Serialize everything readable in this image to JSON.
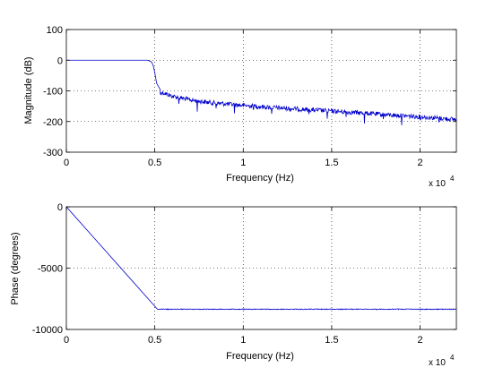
{
  "chart_data": [
    {
      "type": "line",
      "title": "",
      "xlabel": "Frequency (Hz)",
      "ylabel": "Magnitude (dB)",
      "x_multiplier_label": "x 10",
      "x_multiplier_exponent": "4",
      "xlim": [
        0,
        22050
      ],
      "ylim": [
        -300,
        100
      ],
      "grid": true,
      "xticks": [
        0,
        5000,
        10000,
        15000,
        20000
      ],
      "xtick_labels": [
        "0",
        "0.5",
        "1",
        "1.5",
        "2"
      ],
      "yticks": [
        100,
        0,
        -100,
        -200,
        -300
      ],
      "ytick_labels": [
        "100",
        "0",
        "-100",
        "-200",
        "-300"
      ],
      "series": [
        {
          "color": "#0000cc",
          "x": [
            0,
            4600,
            4800,
            4900,
            5000,
            5100,
            5300,
            6000,
            7000,
            8000,
            10000,
            12000,
            14000,
            16000,
            18000,
            20000,
            22050
          ],
          "y": [
            0,
            0,
            -5,
            -15,
            -40,
            -75,
            -95,
            -110,
            -122,
            -130,
            -140,
            -148,
            -155,
            -162,
            -170,
            -177,
            -186
          ],
          "ripple_start": 5300,
          "ripple_depth": 15,
          "notch_depth": 35
        }
      ]
    },
    {
      "type": "line",
      "title": "",
      "xlabel": "Frequency (Hz)",
      "ylabel": "Phase (degrees)",
      "x_multiplier_label": "x 10",
      "x_multiplier_exponent": "4",
      "xlim": [
        0,
        22050
      ],
      "ylim": [
        -10000,
        0
      ],
      "grid": true,
      "xticks": [
        0,
        5000,
        10000,
        15000,
        20000
      ],
      "xtick_labels": [
        "0",
        "0.5",
        "1",
        "1.5",
        "2"
      ],
      "yticks": [
        0,
        -5000,
        -10000
      ],
      "ytick_labels": [
        "0",
        "-5000",
        "-10000"
      ],
      "series": [
        {
          "color": "#0000cc",
          "x": [
            0,
            5150,
            22050
          ],
          "y": [
            0,
            -8350,
            -8350
          ],
          "ripple_start": 5150,
          "ripple_depth": 60,
          "notch_depth": 0
        }
      ]
    }
  ]
}
